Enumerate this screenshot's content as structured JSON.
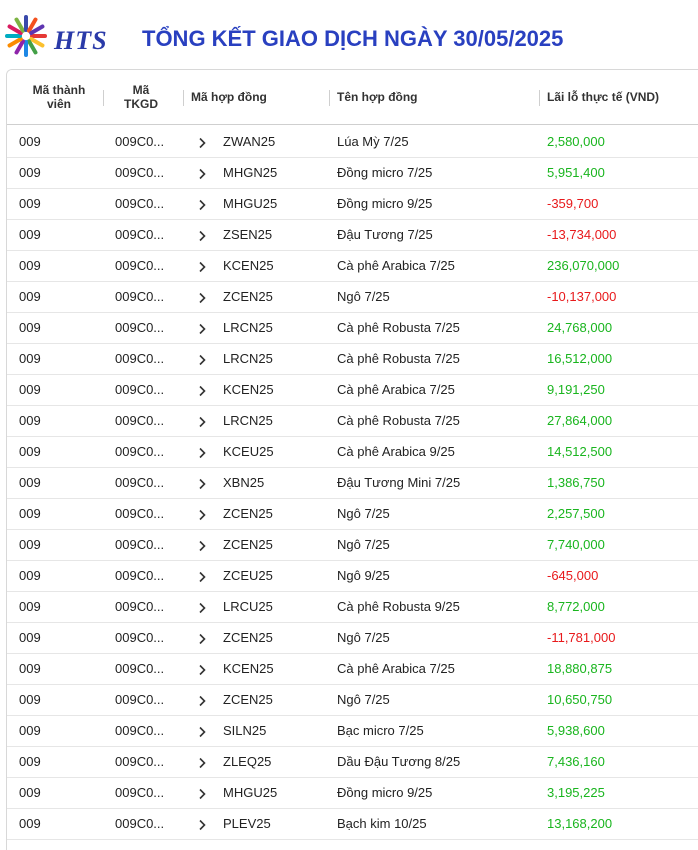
{
  "header": {
    "logo_text": "HTS",
    "title": "TỔNG KẾT GIAO DỊCH NGÀY 30/05/2025"
  },
  "table": {
    "columns": {
      "member_code": "Mã thành viên",
      "account_code": "Mã TKGD",
      "contract_code": "Mã hợp đồng",
      "contract_name": "Tên hợp đồng",
      "realized_pnl": "Lãi lỗ thực tế (VND)"
    },
    "rows": [
      {
        "member": "009",
        "account": "009C0...",
        "code": "ZWAN25",
        "name": "Lúa Mỳ 7/25",
        "pnl": "2,580,000",
        "sign": "pos"
      },
      {
        "member": "009",
        "account": "009C0...",
        "code": "MHGN25",
        "name": "Đồng micro 7/25",
        "pnl": "5,951,400",
        "sign": "pos"
      },
      {
        "member": "009",
        "account": "009C0...",
        "code": "MHGU25",
        "name": "Đồng micro 9/25",
        "pnl": "-359,700",
        "sign": "neg"
      },
      {
        "member": "009",
        "account": "009C0...",
        "code": "ZSEN25",
        "name": "Đậu Tương 7/25",
        "pnl": "-13,734,000",
        "sign": "neg"
      },
      {
        "member": "009",
        "account": "009C0...",
        "code": "KCEN25",
        "name": "Cà phê Arabica 7/25",
        "pnl": "236,070,000",
        "sign": "pos"
      },
      {
        "member": "009",
        "account": "009C0...",
        "code": "ZCEN25",
        "name": "Ngô 7/25",
        "pnl": "-10,137,000",
        "sign": "neg"
      },
      {
        "member": "009",
        "account": "009C0...",
        "code": "LRCN25",
        "name": "Cà phê Robusta 7/25",
        "pnl": "24,768,000",
        "sign": "pos"
      },
      {
        "member": "009",
        "account": "009C0...",
        "code": "LRCN25",
        "name": "Cà phê Robusta 7/25",
        "pnl": "16,512,000",
        "sign": "pos"
      },
      {
        "member": "009",
        "account": "009C0...",
        "code": "KCEN25",
        "name": "Cà phê Arabica 7/25",
        "pnl": "9,191,250",
        "sign": "pos"
      },
      {
        "member": "009",
        "account": "009C0...",
        "code": "LRCN25",
        "name": "Cà phê Robusta 7/25",
        "pnl": "27,864,000",
        "sign": "pos"
      },
      {
        "member": "009",
        "account": "009C0...",
        "code": "KCEU25",
        "name": "Cà phê Arabica 9/25",
        "pnl": "14,512,500",
        "sign": "pos"
      },
      {
        "member": "009",
        "account": "009C0...",
        "code": "XBN25",
        "name": "Đậu Tương Mini 7/25",
        "pnl": "1,386,750",
        "sign": "pos"
      },
      {
        "member": "009",
        "account": "009C0...",
        "code": "ZCEN25",
        "name": "Ngô 7/25",
        "pnl": "2,257,500",
        "sign": "pos"
      },
      {
        "member": "009",
        "account": "009C0...",
        "code": "ZCEN25",
        "name": "Ngô 7/25",
        "pnl": "7,740,000",
        "sign": "pos"
      },
      {
        "member": "009",
        "account": "009C0...",
        "code": "ZCEU25",
        "name": "Ngô 9/25",
        "pnl": "-645,000",
        "sign": "neg"
      },
      {
        "member": "009",
        "account": "009C0...",
        "code": "LRCU25",
        "name": "Cà phê Robusta 9/25",
        "pnl": "8,772,000",
        "sign": "pos"
      },
      {
        "member": "009",
        "account": "009C0...",
        "code": "ZCEN25",
        "name": "Ngô 7/25",
        "pnl": "-11,781,000",
        "sign": "neg"
      },
      {
        "member": "009",
        "account": "009C0...",
        "code": "KCEN25",
        "name": "Cà phê Arabica 7/25",
        "pnl": "18,880,875",
        "sign": "pos"
      },
      {
        "member": "009",
        "account": "009C0...",
        "code": "ZCEN25",
        "name": "Ngô 7/25",
        "pnl": "10,650,750",
        "sign": "pos"
      },
      {
        "member": "009",
        "account": "009C0...",
        "code": "SILN25",
        "name": "Bạc micro 7/25",
        "pnl": "5,938,600",
        "sign": "pos"
      },
      {
        "member": "009",
        "account": "009C0...",
        "code": "ZLEQ25",
        "name": "Dầu Đậu Tương 8/25",
        "pnl": "7,436,160",
        "sign": "pos"
      },
      {
        "member": "009",
        "account": "009C0...",
        "code": "MHGU25",
        "name": "Đồng micro 9/25",
        "pnl": "3,195,225",
        "sign": "pos"
      },
      {
        "member": "009",
        "account": "009C0...",
        "code": "PLEV25",
        "name": "Bạch kim 10/25",
        "pnl": "13,168,200",
        "sign": "pos"
      }
    ]
  },
  "colors": {
    "title": "#2940c0",
    "positive": "#19b51e",
    "negative": "#e8191b"
  },
  "icons": {
    "expand": "chevron-right-icon",
    "logo": "starburst-logo-icon"
  }
}
